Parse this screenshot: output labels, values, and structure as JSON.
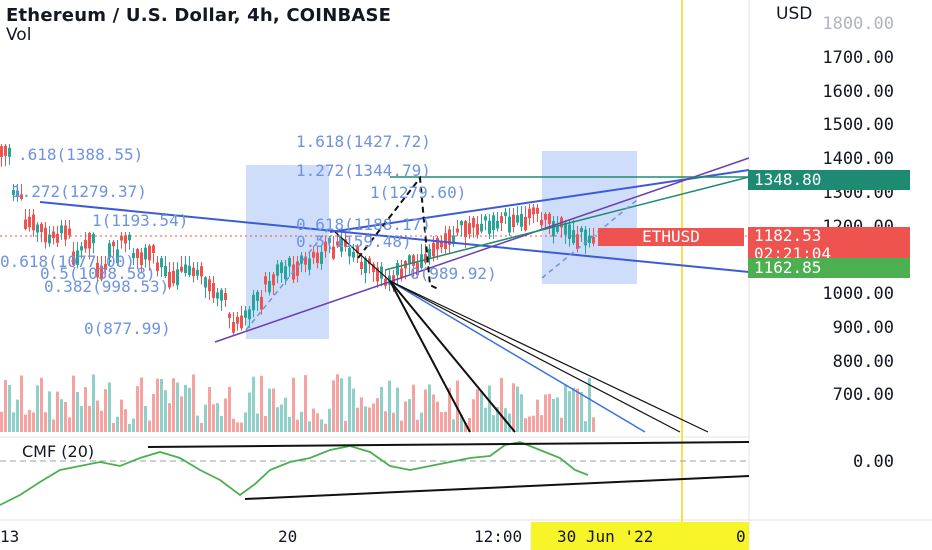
{
  "header": {
    "title": "Ethereum / U.S. Dollar, 4h, COINBASE",
    "volume_label": "Vol"
  },
  "price_axis": {
    "currency": "USD",
    "labels": [
      "1800.00",
      "1700.00",
      "1600.00",
      "1500.00",
      "1400.00",
      "1300.00",
      "1200.00",
      "1000.00",
      "900.00",
      "800.00",
      "700.00"
    ],
    "cmf_zero": "0.00"
  },
  "badges": {
    "level_high": "1348.80",
    "last_price": "1182.53",
    "countdown": "02:21:04",
    "level_low": "1162.85",
    "symbol": "ETHUSD"
  },
  "fib_left": [
    ".618(1388.55)",
    "1.272(1279.37)",
    "1(1193.54)",
    "0.618(1077.00)",
    "0.5(1038.58)",
    "0.382(998.53)",
    "0(877.99)"
  ],
  "fib_right": [
    "1.618(1427.72)",
    "1.272(1344.79)",
    "1(1279.60)",
    "0.618(1188.17)",
    "0.5(1159.48)",
    "0(989.92)"
  ],
  "indicator": {
    "label": "CMF (20)"
  },
  "time_axis": {
    "labels": [
      "13",
      "20",
      "12:00"
    ],
    "highlight_date": "30 Jun '22",
    "trailing": "0"
  },
  "colors": {
    "up": "#26a69a",
    "down": "#ef5350",
    "trendline": "#3b5bdb",
    "fib_box": "#aec6f5",
    "vertical_line": "#f2e44a",
    "cmf_line": "#4caf50"
  }
}
